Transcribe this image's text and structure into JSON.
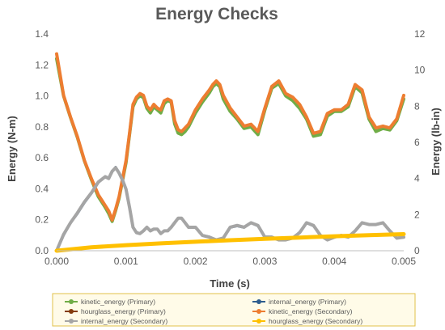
{
  "chart_data": {
    "type": "line",
    "title": "Energy Checks",
    "xlabel": "Time (s)",
    "ylabel": "Energy (N-m)",
    "y2label": "Energy (lb-in)",
    "xlim": [
      0,
      0.005
    ],
    "ylim": [
      0,
      1.4
    ],
    "y2lim": [
      0,
      12
    ],
    "x_ticks": [
      "0.000",
      "0.001",
      "0.002",
      "0.003",
      "0.004",
      "0.005"
    ],
    "y_ticks": [
      "0.0",
      "0.2",
      "0.4",
      "0.6",
      "0.8",
      "1.0",
      "1.2",
      "1.4"
    ],
    "y2_ticks": [
      "0",
      "2",
      "4",
      "6",
      "8",
      "10",
      "12"
    ],
    "grid": false,
    "legend_position": "bottom",
    "series": [
      {
        "name": "kinetic_energy (Primary)",
        "axis": "primary",
        "color": "#70ad47",
        "width": 4,
        "x": [
          0,
          0.0001,
          0.0002,
          0.0003,
          0.0004,
          0.0005,
          0.0006,
          0.0007,
          0.00075,
          0.0008,
          0.00085,
          0.0009,
          0.001,
          0.00105,
          0.0011,
          0.00115,
          0.0012,
          0.00125,
          0.0013,
          0.00135,
          0.0014,
          0.00145,
          0.0015,
          0.00155,
          0.0016,
          0.00165,
          0.0017,
          0.00175,
          0.0018,
          0.00185,
          0.0019,
          0.002,
          0.0021,
          0.0022,
          0.00225,
          0.0023,
          0.00235,
          0.0024,
          0.0025,
          0.0026,
          0.0027,
          0.0028,
          0.0029,
          0.003,
          0.0031,
          0.0032,
          0.0033,
          0.0034,
          0.0035,
          0.0036,
          0.0037,
          0.0038,
          0.0039,
          0.004,
          0.0041,
          0.0042,
          0.0043,
          0.0044,
          0.0045,
          0.0046,
          0.0047,
          0.0048,
          0.0049,
          0.005
        ],
        "y": [
          1.24,
          1.0,
          0.86,
          0.73,
          0.58,
          0.46,
          0.35,
          0.28,
          0.24,
          0.19,
          0.26,
          0.34,
          0.57,
          0.75,
          0.93,
          0.98,
          1.0,
          0.99,
          0.92,
          0.89,
          0.93,
          0.91,
          0.89,
          0.95,
          0.97,
          0.96,
          0.82,
          0.76,
          0.75,
          0.77,
          0.8,
          0.89,
          0.96,
          1.02,
          1.06,
          1.08,
          1.06,
          0.98,
          0.9,
          0.85,
          0.79,
          0.8,
          0.75,
          0.91,
          1.05,
          1.08,
          1.0,
          0.97,
          0.92,
          0.85,
          0.74,
          0.75,
          0.87,
          0.9,
          0.9,
          0.93,
          1.06,
          1.02,
          0.85,
          0.77,
          0.79,
          0.78,
          0.84,
          0.98
        ]
      },
      {
        "name": "internal_energy (Primary)",
        "axis": "primary",
        "color": "#2e5d8e",
        "width": 3,
        "x": [
          0,
          5e-05,
          0.0001,
          0.0002,
          0.0003,
          0.0004,
          0.0005,
          0.0006,
          0.0007,
          0.00075,
          0.0008,
          0.00085,
          0.0009,
          0.00095,
          0.001,
          0.00105,
          0.0011,
          0.00115,
          0.0012,
          0.00125,
          0.0013,
          0.00135,
          0.0014,
          0.00145,
          0.0015,
          0.00155,
          0.0016,
          0.00165,
          0.0017,
          0.00175,
          0.0018,
          0.00185,
          0.0019,
          0.002,
          0.0021,
          0.0022,
          0.0023,
          0.0024,
          0.0025,
          0.0026,
          0.0027,
          0.0028,
          0.0029,
          0.003,
          0.0031,
          0.0032,
          0.0033,
          0.0034,
          0.0035,
          0.0036,
          0.0037,
          0.0038,
          0.0039,
          0.004,
          0.0041,
          0.0042,
          0.0043,
          0.0044,
          0.0045,
          0.0046,
          0.0047,
          0.0048,
          0.0049,
          0.005
        ],
        "y": [
          0.0,
          0.05,
          0.1,
          0.18,
          0.24,
          0.31,
          0.37,
          0.44,
          0.48,
          0.47,
          0.51,
          0.54,
          0.5,
          0.46,
          0.4,
          0.28,
          0.15,
          0.12,
          0.11,
          0.13,
          0.15,
          0.13,
          0.14,
          0.14,
          0.11,
          0.13,
          0.13,
          0.15,
          0.18,
          0.21,
          0.21,
          0.18,
          0.15,
          0.15,
          0.1,
          0.09,
          0.07,
          0.08,
          0.15,
          0.16,
          0.15,
          0.18,
          0.16,
          0.09,
          0.09,
          0.07,
          0.07,
          0.08,
          0.12,
          0.18,
          0.16,
          0.1,
          0.07,
          0.09,
          0.1,
          0.09,
          0.13,
          0.18,
          0.17,
          0.17,
          0.18,
          0.13,
          0.08,
          0.09
        ]
      },
      {
        "name": "hourglass_energy (Primary)",
        "axis": "primary",
        "color": "#843c0c",
        "width": 3,
        "x": [
          0,
          0.0005,
          0.001,
          0.0015,
          0.002,
          0.0025,
          0.003,
          0.0035,
          0.004,
          0.0045,
          0.005
        ],
        "y": [
          0.0,
          0.022,
          0.036,
          0.048,
          0.058,
          0.068,
          0.077,
          0.085,
          0.093,
          0.1,
          0.107
        ]
      },
      {
        "name": "kinetic_energy (Secondary)",
        "axis": "secondary",
        "color": "#ed7d31",
        "width": 4,
        "x": [
          0,
          0.0001,
          0.0002,
          0.0003,
          0.0004,
          0.0005,
          0.0006,
          0.0007,
          0.00075,
          0.0008,
          0.00085,
          0.0009,
          0.001,
          0.00105,
          0.0011,
          0.00115,
          0.0012,
          0.00125,
          0.0013,
          0.00135,
          0.0014,
          0.00145,
          0.0015,
          0.00155,
          0.0016,
          0.00165,
          0.0017,
          0.00175,
          0.0018,
          0.00185,
          0.0019,
          0.002,
          0.0021,
          0.0022,
          0.00225,
          0.0023,
          0.00235,
          0.0024,
          0.0025,
          0.0026,
          0.0027,
          0.0028,
          0.0029,
          0.003,
          0.0031,
          0.0032,
          0.0033,
          0.0034,
          0.0035,
          0.0036,
          0.0037,
          0.0038,
          0.0039,
          0.004,
          0.0041,
          0.0042,
          0.0043,
          0.0044,
          0.0045,
          0.0046,
          0.0047,
          0.0048,
          0.0049,
          0.005
        ],
        "y": [
          10.9,
          8.6,
          7.4,
          6.3,
          5.0,
          4.0,
          3.1,
          2.5,
          2.2,
          1.7,
          2.3,
          3.0,
          5.0,
          6.5,
          8.1,
          8.5,
          8.7,
          8.6,
          8.0,
          7.8,
          8.1,
          7.9,
          7.8,
          8.3,
          8.4,
          8.3,
          7.2,
          6.7,
          6.6,
          6.8,
          7.0,
          7.8,
          8.4,
          8.9,
          9.2,
          9.4,
          9.2,
          8.6,
          7.9,
          7.4,
          6.9,
          7.0,
          6.6,
          7.9,
          9.1,
          9.4,
          8.7,
          8.5,
          8.1,
          7.4,
          6.5,
          6.6,
          7.6,
          7.8,
          7.8,
          8.1,
          9.2,
          8.9,
          7.4,
          6.8,
          6.9,
          6.8,
          7.3,
          8.6
        ]
      },
      {
        "name": "internal_energy (Secondary)",
        "axis": "secondary",
        "color": "#a5a5a5",
        "width": 4,
        "x": [
          0,
          5e-05,
          0.0001,
          0.0002,
          0.0003,
          0.0004,
          0.0005,
          0.0006,
          0.0007,
          0.00075,
          0.0008,
          0.00085,
          0.0009,
          0.00095,
          0.001,
          0.00105,
          0.0011,
          0.00115,
          0.0012,
          0.00125,
          0.0013,
          0.00135,
          0.0014,
          0.00145,
          0.0015,
          0.00155,
          0.0016,
          0.00165,
          0.0017,
          0.00175,
          0.0018,
          0.00185,
          0.0019,
          0.002,
          0.0021,
          0.0022,
          0.0023,
          0.0024,
          0.0025,
          0.0026,
          0.0027,
          0.0028,
          0.0029,
          0.003,
          0.0031,
          0.0032,
          0.0033,
          0.0034,
          0.0035,
          0.0036,
          0.0037,
          0.0038,
          0.0039,
          0.004,
          0.0041,
          0.0042,
          0.0043,
          0.0044,
          0.0045,
          0.0046,
          0.0047,
          0.0048,
          0.0049,
          0.005
        ],
        "y": [
          0.0,
          0.45,
          0.9,
          1.55,
          2.1,
          2.7,
          3.2,
          3.8,
          4.1,
          4.0,
          4.4,
          4.6,
          4.3,
          3.9,
          3.4,
          2.4,
          1.3,
          1.0,
          0.95,
          1.1,
          1.3,
          1.1,
          1.2,
          1.2,
          0.95,
          1.1,
          1.1,
          1.3,
          1.55,
          1.8,
          1.8,
          1.55,
          1.3,
          1.3,
          0.85,
          0.75,
          0.6,
          0.7,
          1.3,
          1.4,
          1.3,
          1.55,
          1.4,
          0.75,
          0.75,
          0.6,
          0.6,
          0.7,
          1.0,
          1.55,
          1.4,
          0.85,
          0.6,
          0.75,
          0.85,
          0.75,
          1.1,
          1.55,
          1.45,
          1.45,
          1.55,
          1.1,
          0.7,
          0.75
        ]
      },
      {
        "name": "hourglass_energy (Secondary)",
        "axis": "secondary",
        "color": "#ffc000",
        "width": 5,
        "x": [
          0,
          0.0005,
          0.001,
          0.0015,
          0.002,
          0.0025,
          0.003,
          0.0035,
          0.004,
          0.0045,
          0.005
        ],
        "y": [
          0.0,
          0.19,
          0.31,
          0.41,
          0.5,
          0.58,
          0.66,
          0.73,
          0.8,
          0.86,
          0.92
        ]
      }
    ]
  }
}
